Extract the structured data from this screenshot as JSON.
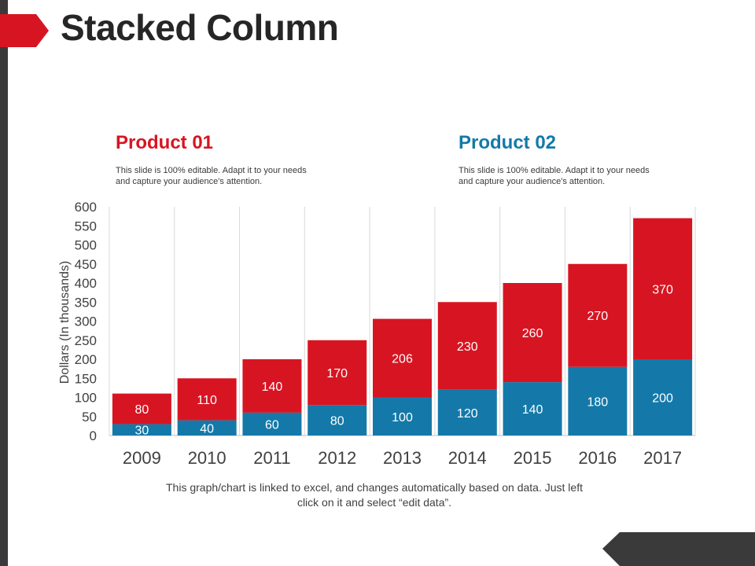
{
  "page": {
    "title": "Stacked Column"
  },
  "colors": {
    "product1": "#d71522",
    "product2": "#1479a9",
    "dark": "#3a3a3a"
  },
  "legend": [
    {
      "title": "Product 01",
      "desc": "This slide is 100% editable. Adapt it to your needs and capture your audience's attention."
    },
    {
      "title": "Product 02",
      "desc": "This slide is 100% editable. Adapt it to your needs and capture your audience's attention."
    }
  ],
  "chart_data": {
    "type": "bar",
    "stacked": true,
    "categories": [
      "2009",
      "2010",
      "2011",
      "2012",
      "2013",
      "2014",
      "2015",
      "2016",
      "2017"
    ],
    "series": [
      {
        "name": "Product 02",
        "values": [
          30,
          40,
          60,
          80,
          100,
          120,
          140,
          180,
          200
        ]
      },
      {
        "name": "Product 01",
        "values": [
          80,
          110,
          140,
          170,
          206,
          230,
          260,
          270,
          370
        ]
      }
    ],
    "ylabel": "Dollars (In thousands)",
    "ylim": [
      0,
      600
    ],
    "ytick_step": 50,
    "grid": "vertical"
  },
  "caption": "This graph/chart is linked to excel, and changes automatically based on data. Just left click on it and select “edit data”."
}
